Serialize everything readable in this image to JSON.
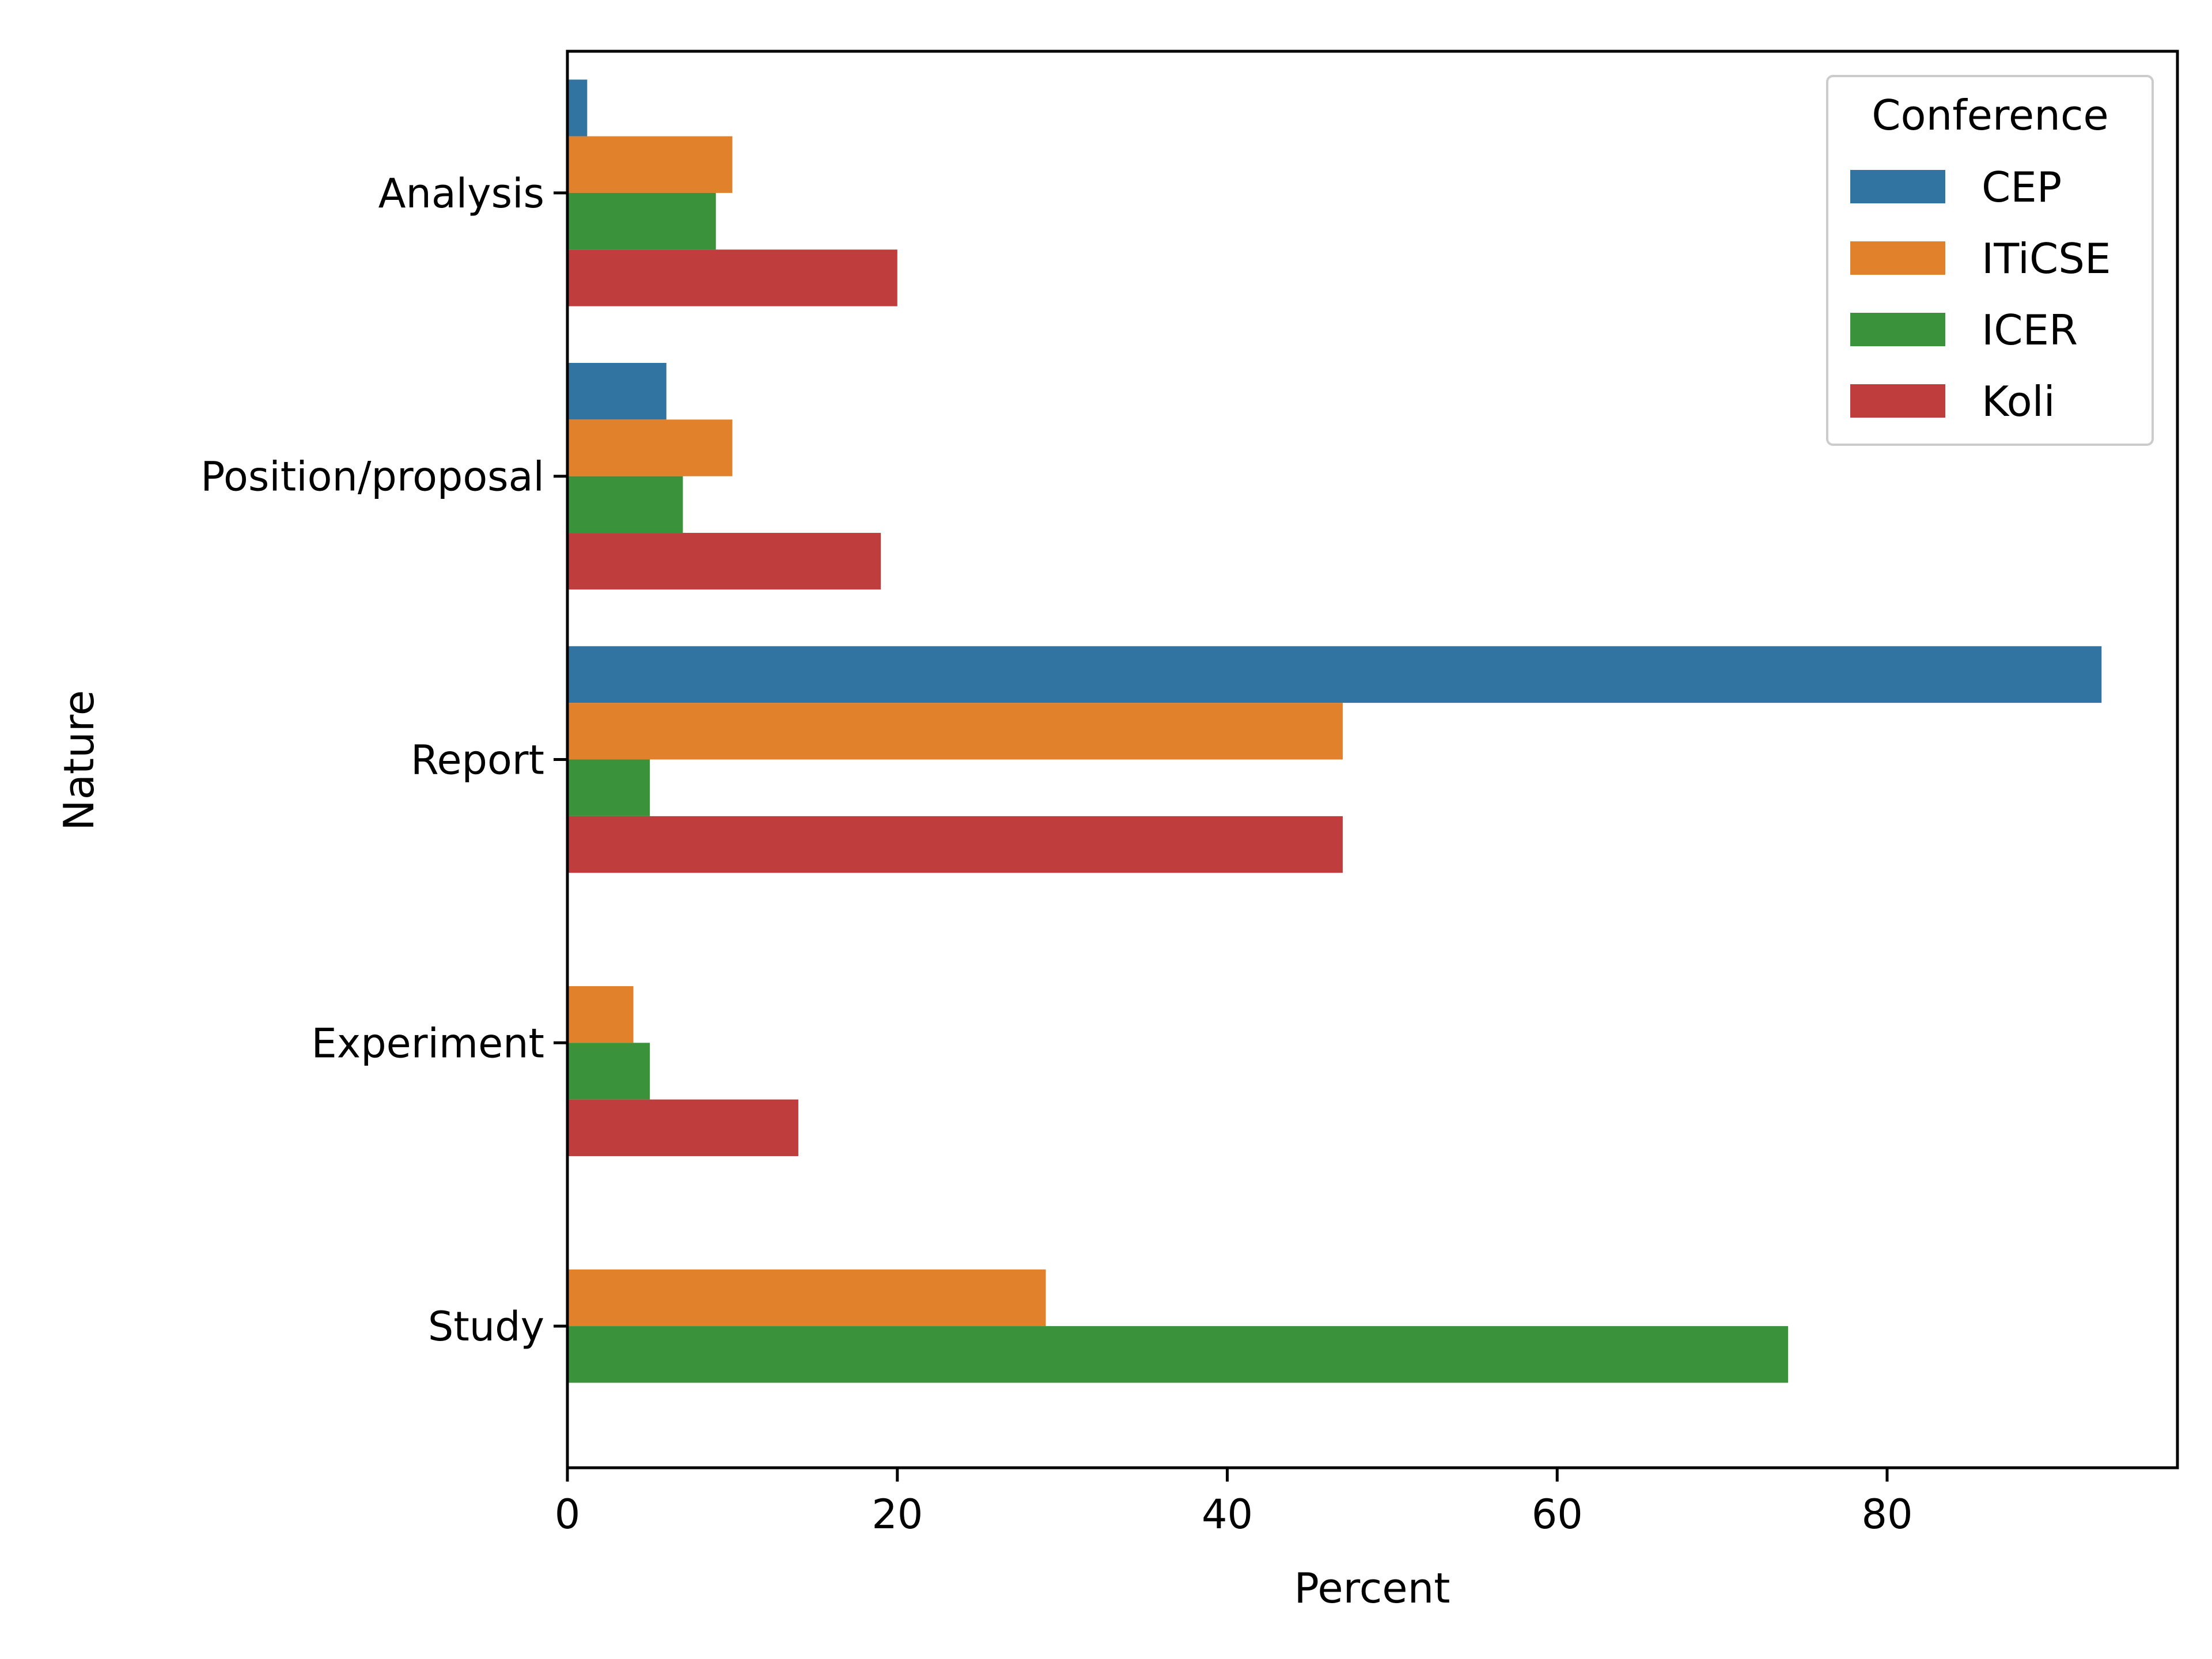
{
  "chart_data": {
    "type": "bar",
    "orientation": "horizontal",
    "categories": [
      "Analysis",
      "Position/proposal",
      "Report",
      "Experiment",
      "Study"
    ],
    "series": [
      {
        "name": "CEP",
        "color": "#3274a1",
        "values": [
          1.2,
          6,
          93,
          0,
          0
        ]
      },
      {
        "name": "ITiCSE",
        "color": "#e1812c",
        "values": [
          10,
          10,
          47,
          4,
          29
        ]
      },
      {
        "name": "ICER",
        "color": "#3a923a",
        "values": [
          9,
          7,
          5,
          5,
          74
        ]
      },
      {
        "name": "Koli",
        "color": "#c03d3e",
        "values": [
          20,
          19,
          47,
          14,
          0
        ]
      }
    ],
    "xlabel": "Percent",
    "ylabel": "Nature",
    "xlim": [
      0,
      97.6
    ],
    "xticks": [
      0,
      20,
      40,
      60,
      80
    ],
    "grid": false,
    "legend": {
      "title": "Conference",
      "placement": "top-right"
    }
  }
}
